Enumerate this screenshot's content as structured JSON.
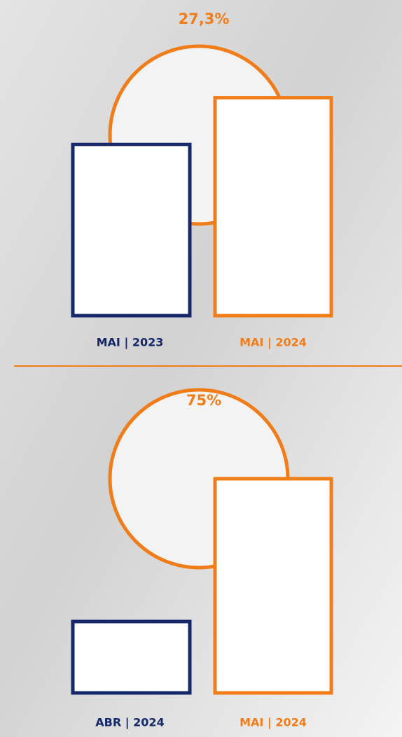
{
  "chart_data": [
    {
      "type": "bar",
      "annotation": "27,3%",
      "categories": [
        "MAI | 2023",
        "MAI | 2024"
      ],
      "values": [
        100,
        127.3
      ],
      "colors": [
        "#15296a",
        "#f07d19"
      ],
      "ylim": [
        0,
        130
      ]
    },
    {
      "type": "bar",
      "annotation": "75%",
      "categories": [
        "ABR | 2024",
        "MAI | 2024"
      ],
      "values": [
        100,
        175
      ],
      "colors": [
        "#15296a",
        "#f07d19"
      ],
      "ylim": [
        62.5,
        175
      ]
    }
  ]
}
